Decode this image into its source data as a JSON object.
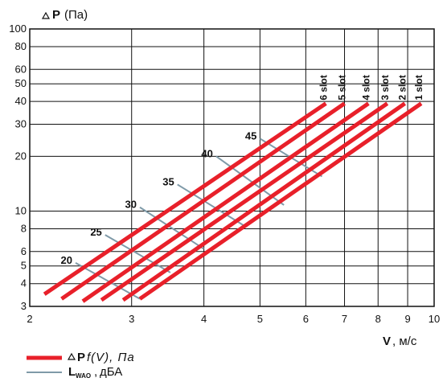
{
  "chart_data": {
    "type": "line",
    "x_scale": "log",
    "y_scale": "log",
    "xlim": [
      2,
      10
    ],
    "ylim": [
      3,
      100
    ],
    "x_ticks": [
      "2",
      "3",
      "4",
      "5",
      "6",
      "7",
      "8",
      "9",
      "10"
    ],
    "y_ticks": [
      "3",
      "4",
      "5",
      "6",
      "8",
      "10",
      "20",
      "30",
      "40",
      "50",
      "60",
      "80",
      "100"
    ],
    "grid": true,
    "y_title": {
      "symbol": "P",
      "unit": "(Па)"
    },
    "x_title": {
      "symbol": "V",
      "unit": ", м/с"
    },
    "series": [
      {
        "name": "6 slot",
        "color": "#e8202a",
        "x": [
          2.12,
          6.5
        ],
        "y": [
          3.5,
          39
        ]
      },
      {
        "name": "5 slot",
        "color": "#e8202a",
        "x": [
          2.27,
          7.0
        ],
        "y": [
          3.3,
          39
        ]
      },
      {
        "name": "4 slot",
        "color": "#e8202a",
        "x": [
          2.47,
          7.7
        ],
        "y": [
          3.2,
          39
        ]
      },
      {
        "name": "3 slot",
        "color": "#e8202a",
        "x": [
          2.66,
          8.3
        ],
        "y": [
          3.25,
          39
        ]
      },
      {
        "name": "2 slot",
        "color": "#e8202a",
        "x": [
          2.9,
          8.9
        ],
        "y": [
          3.25,
          39
        ]
      },
      {
        "name": "1 slot",
        "color": "#e8202a",
        "x": [
          3.1,
          9.5
        ],
        "y": [
          3.3,
          39
        ]
      }
    ],
    "noise_lines": [
      {
        "label": "20",
        "color": "#7f9aa8",
        "x": [
          2.4,
          3.1
        ],
        "y": [
          5.2,
          3.3
        ]
      },
      {
        "label": "25",
        "color": "#7f9aa8",
        "x": [
          2.7,
          3.5
        ],
        "y": [
          7.4,
          4.6
        ]
      },
      {
        "label": "30",
        "color": "#7f9aa8",
        "x": [
          3.1,
          4.0
        ],
        "y": [
          10.5,
          6.2
        ]
      },
      {
        "label": "35",
        "color": "#7f9aa8",
        "x": [
          3.6,
          4.7
        ],
        "y": [
          14.0,
          8.3
        ]
      },
      {
        "label": "40",
        "color": "#7f9aa8",
        "x": [
          4.2,
          5.5
        ],
        "y": [
          20.0,
          10.8
        ]
      },
      {
        "label": "45",
        "color": "#7f9aa8",
        "x": [
          5.0,
          6.4
        ],
        "y": [
          25.0,
          15.5
        ]
      }
    ],
    "legend": [
      {
        "kind": "red-line",
        "color": "#e8202a",
        "symbol": "P",
        "func": "f(V), Па"
      },
      {
        "kind": "blue-line",
        "color": "#7f9aa8",
        "symbol": "L",
        "subscript": "WAO",
        "unit": "дБА"
      }
    ]
  }
}
